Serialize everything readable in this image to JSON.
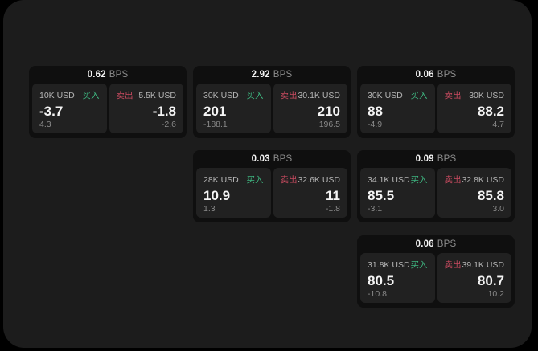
{
  "colors": {
    "buy": "#3eb680",
    "sell": "#c74a5f",
    "panel_bg": "#1c1c1c",
    "card_bg": "#0f0f0f",
    "tile_bg": "#212121"
  },
  "bps_label": "BPS",
  "cards": [
    {
      "bps": "0.62",
      "buy": {
        "amount": "10K USD",
        "label": "买入",
        "price": "-3.7",
        "delta": "4.3"
      },
      "sell": {
        "label": "卖出",
        "amount": "5.5K USD",
        "price": "-1.8",
        "delta": "-2.6"
      }
    },
    {
      "bps": "2.92",
      "buy": {
        "amount": "30K USD",
        "label": "买入",
        "price": "201",
        "delta": "-188.1"
      },
      "sell": {
        "label": "卖出",
        "amount": "30.1K USD",
        "price": "210",
        "delta": "196.5"
      }
    },
    {
      "bps": "0.06",
      "buy": {
        "amount": "30K USD",
        "label": "买入",
        "price": "88",
        "delta": "-4.9"
      },
      "sell": {
        "label": "卖出",
        "amount": "30K USD",
        "price": "88.2",
        "delta": "4.7"
      }
    },
    {
      "bps": "0.03",
      "buy": {
        "amount": "28K USD",
        "label": "买入",
        "price": "10.9",
        "delta": "1.3"
      },
      "sell": {
        "label": "卖出",
        "amount": "32.6K USD",
        "price": "11",
        "delta": "-1.8"
      }
    },
    {
      "bps": "0.09",
      "buy": {
        "amount": "34.1K USD",
        "label": "买入",
        "price": "85.5",
        "delta": "-3.1"
      },
      "sell": {
        "label": "卖出",
        "amount": "32.8K USD",
        "price": "85.8",
        "delta": "3.0"
      }
    },
    {
      "bps": "0.06",
      "buy": {
        "amount": "31.8K USD",
        "label": "买入",
        "price": "80.5",
        "delta": "-10.8"
      },
      "sell": {
        "label": "卖出",
        "amount": "39.1K USD",
        "price": "80.7",
        "delta": "10.2"
      }
    }
  ]
}
